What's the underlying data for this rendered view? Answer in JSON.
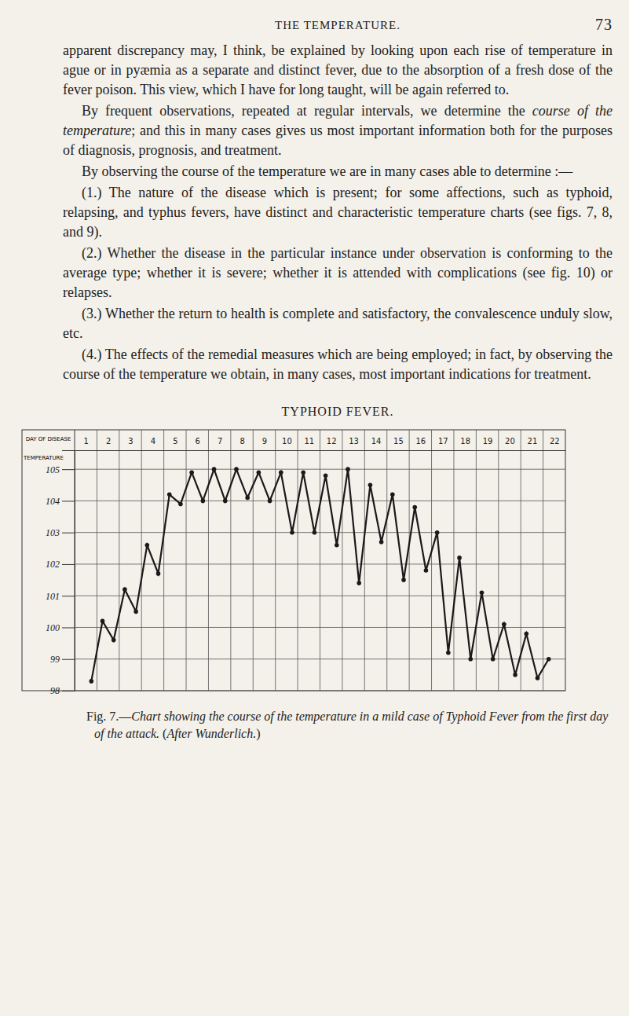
{
  "header": {
    "title": "THE TEMPERATURE.",
    "page": 73
  },
  "paragraphs": [
    [
      "apparent discrepancy may, I think, be explained by looking upon each rise of temperature in ague or in pyæmia as a separate and distinct fever, due to the absorption of a fresh dose of the fever poison. This view, which I have for long taught, will be again referred to."
    ],
    [
      "By frequent observations, repeated at regular intervals, we determine the ",
      "course of the temperature",
      "; and this in many cases gives us most important information both for the purposes of diagnosis, prognosis, and treatment."
    ],
    [
      "By observing the course of the temperature we are in many cases able to determine :—"
    ],
    [
      "(1.) The nature of the disease which is present; for some affections, such as typhoid, relapsing, and typhus fevers, have distinct and characteristic temperature charts (see figs. 7, 8, and 9)."
    ],
    [
      "(2.) Whether the disease in the particular instance under observation is conforming to the average type; whether it is severe; whether it is attended with complications (see fig. 10) or relapses."
    ],
    [
      "(3.) Whether the return to health is complete and satisfactory, the convalescence unduly slow, etc."
    ],
    [
      "(4.) The effects of the remedial measures which are being employed; in fact, by observing the course of the temperature we obtain, in many cases, most important indications for treatment."
    ]
  ],
  "chart_data": {
    "type": "line",
    "title": "TYPHOID FEVER.",
    "x_label": "DAY OF DISEASE",
    "y_label": "TEMPERATURE",
    "x": [
      1.25,
      1.75,
      2.25,
      2.75,
      3.25,
      3.75,
      4.25,
      4.75,
      5.25,
      5.75,
      6.25,
      6.75,
      7.25,
      7.75,
      8.25,
      8.75,
      9.25,
      9.75,
      10.25,
      10.75,
      11.25,
      11.75,
      12.25,
      12.75,
      13.25,
      13.75,
      14.25,
      14.75,
      15.25,
      15.75,
      16.25,
      16.75,
      17.25,
      17.75,
      18.25,
      18.75,
      19.25,
      19.75,
      20.25,
      20.75,
      21.25,
      21.75
    ],
    "series": [
      {
        "color": "#1a1a1a",
        "marker": "dot",
        "values": [
          98.3,
          100.2,
          99.6,
          101.2,
          100.5,
          102.6,
          101.7,
          104.2,
          103.9,
          104.9,
          104.0,
          105.0,
          104.0,
          105.0,
          104.1,
          104.9,
          104.0,
          104.9,
          103.0,
          104.9,
          103.0,
          104.8,
          102.6,
          105.0,
          101.4,
          104.5,
          102.7,
          104.2,
          101.5,
          103.8,
          101.8,
          103.0,
          99.2,
          102.2,
          99.0,
          101.1,
          99.0,
          100.1,
          98.5,
          99.8,
          98.4,
          99.0
        ]
      }
    ],
    "xlim": [
      0.5,
      22.5
    ],
    "xticks": [
      1,
      2,
      3,
      4,
      5,
      6,
      7,
      8,
      9,
      10,
      11,
      12,
      13,
      14,
      15,
      16,
      17,
      18,
      19,
      20,
      21,
      22
    ],
    "ylim": [
      98,
      105.6
    ],
    "yticks": [
      98,
      99,
      100,
      101,
      102,
      103,
      104,
      105
    ],
    "grid": true
  },
  "caption": [
    "Fig. 7.—",
    "Chart showing the course of the temperature in a mild case of Typhoid Fever from the first day of the attack.",
    " (",
    "After Wunderlich.",
    ")"
  ]
}
